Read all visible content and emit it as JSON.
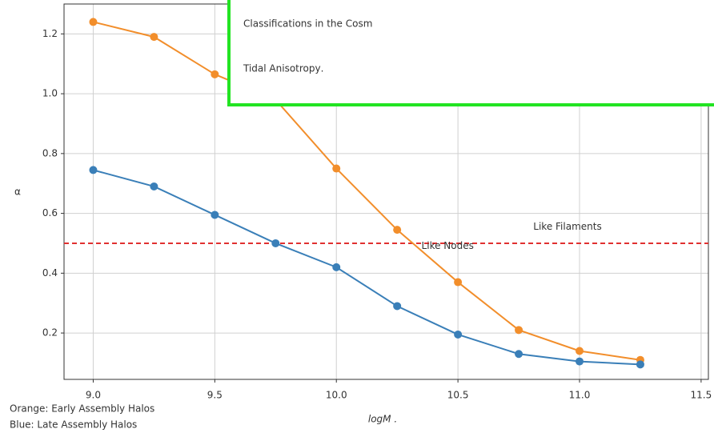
{
  "chart_data": {
    "type": "line",
    "x": [
      9.0,
      9.25,
      9.5,
      9.75,
      10.0,
      10.25,
      10.5,
      10.75,
      11.0,
      11.25
    ],
    "series": [
      {
        "name": "Orange: Early Assembly Halos",
        "color": "#f28e2b",
        "values": [
          1.24,
          1.19,
          1.065,
          0.98,
          0.75,
          0.545,
          0.37,
          0.21,
          0.14,
          0.11
        ]
      },
      {
        "name": "Blue: Late Assembly Halos",
        "color": "#3a7fb8",
        "values": [
          0.745,
          0.69,
          0.595,
          0.5,
          0.42,
          0.29,
          0.195,
          0.13,
          0.105,
          0.095
        ]
      }
    ],
    "xlim": [
      8.88,
      11.53
    ],
    "ylim": [
      0.045,
      1.3
    ],
    "xticks": [
      {
        "value": 9.0,
        "label": "9.0"
      },
      9.5,
      {
        "value": 10.0,
        "label": "10.0"
      },
      10.5,
      {
        "value": 11.0,
        "label": "11.0"
      },
      11.5
    ],
    "yticks": [
      0.2,
      0.4,
      0.6,
      0.8,
      {
        "value": 1.0,
        "label": "1.0"
      },
      1.2
    ],
    "grid": true,
    "xlabel": "logM .",
    "ylabel": "α",
    "hline": {
      "value": 0.5,
      "color": "#e03030"
    },
    "annotations": [
      {
        "text": "Like Filaments",
        "x": 10.81,
        "y": 0.555
      },
      {
        "text": "Like Nodes",
        "x": 10.35,
        "y": 0.49
      }
    ],
    "overlay": {
      "lines": [
        "Classifications in the Cosm",
        "Tidal Anisotropy"
      ],
      "period": ".",
      "border_color": "#22e422"
    }
  }
}
